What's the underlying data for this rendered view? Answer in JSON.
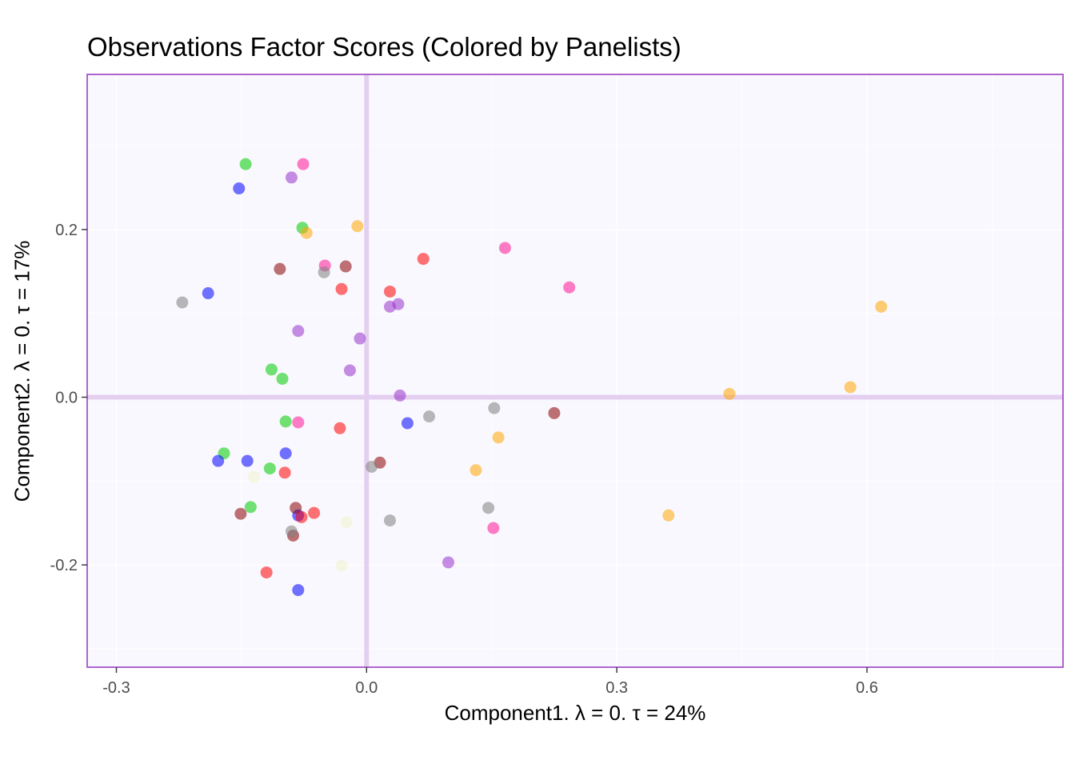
{
  "chart_data": {
    "type": "scatter",
    "title": "Observations Factor Scores (Colored by Panelists)",
    "xlabel": "Component1.   λ = 0.  τ = 24%",
    "ylabel": "Component2.   λ = 0.  τ = 17%",
    "xlim": [
      -0.335,
      0.835
    ],
    "ylim": [
      -0.322,
      0.385
    ],
    "x_ticks": [
      -0.3,
      0.0,
      0.3,
      0.6
    ],
    "x_tick_labels": [
      "-0.3",
      "0.0",
      "0.3",
      "0.6"
    ],
    "y_ticks": [
      -0.2,
      0.0,
      0.2
    ],
    "y_tick_labels": [
      "-0.2",
      "0.0",
      "0.2"
    ],
    "grid": true,
    "reference_lines": {
      "x": 0,
      "y": 0
    },
    "colors": {
      "background": "#f9f8fe",
      "frame": "#9b3fc3",
      "grid": "#ffffff",
      "reference_line": "#e5cff0"
    },
    "series": [
      {
        "color": "#00cc00",
        "values": [
          [
            -0.145,
            0.278
          ],
          [
            -0.077,
            0.202
          ],
          [
            -0.114,
            0.033
          ],
          [
            -0.101,
            0.022
          ],
          [
            -0.097,
            -0.029
          ],
          [
            -0.171,
            -0.067
          ],
          [
            -0.116,
            -0.085
          ],
          [
            -0.139,
            -0.131
          ]
        ]
      },
      {
        "color": "#ff1493",
        "values": [
          [
            -0.076,
            0.278
          ],
          [
            -0.05,
            0.157
          ],
          [
            0.166,
            0.178
          ],
          [
            0.243,
            0.131
          ],
          [
            -0.082,
            -0.03
          ],
          [
            0.152,
            -0.156
          ]
        ]
      },
      {
        "color": "#9932cc",
        "values": [
          [
            -0.09,
            0.262
          ],
          [
            -0.082,
            0.079
          ],
          [
            0.028,
            0.108
          ],
          [
            0.038,
            0.111
          ],
          [
            -0.008,
            0.07
          ],
          [
            -0.02,
            0.032
          ],
          [
            0.04,
            0.002
          ],
          [
            0.098,
            -0.197
          ]
        ]
      },
      {
        "color": "#0000ff",
        "values": [
          [
            -0.153,
            0.249
          ],
          [
            -0.19,
            0.124
          ],
          [
            0.049,
            -0.031
          ],
          [
            -0.178,
            -0.076
          ],
          [
            -0.143,
            -0.076
          ],
          [
            -0.097,
            -0.067
          ],
          [
            -0.082,
            -0.141
          ],
          [
            -0.082,
            -0.23
          ]
        ]
      },
      {
        "color": "#ffa500",
        "values": [
          [
            -0.011,
            0.204
          ],
          [
            -0.072,
            0.196
          ],
          [
            0.617,
            0.108
          ],
          [
            0.58,
            0.012
          ],
          [
            0.435,
            0.004
          ],
          [
            0.158,
            -0.048
          ],
          [
            0.131,
            -0.087
          ],
          [
            0.362,
            -0.141
          ]
        ]
      },
      {
        "color": "#8b0000",
        "values": [
          [
            -0.104,
            0.153
          ],
          [
            -0.025,
            0.156
          ],
          [
            0.225,
            -0.019
          ],
          [
            0.016,
            -0.078
          ],
          [
            -0.151,
            -0.139
          ],
          [
            -0.085,
            -0.132
          ],
          [
            -0.088,
            -0.165
          ]
        ]
      },
      {
        "color": "#808080",
        "values": [
          [
            -0.221,
            0.113
          ],
          [
            -0.051,
            0.149
          ],
          [
            0.075,
            -0.023
          ],
          [
            0.153,
            -0.013
          ],
          [
            0.006,
            -0.083
          ],
          [
            0.028,
            -0.147
          ],
          [
            0.146,
            -0.132
          ],
          [
            -0.09,
            -0.16
          ]
        ]
      },
      {
        "color": "#ff0000",
        "values": [
          [
            0.068,
            0.165
          ],
          [
            -0.03,
            0.129
          ],
          [
            0.028,
            0.126
          ],
          [
            -0.032,
            -0.037
          ],
          [
            -0.098,
            -0.09
          ],
          [
            -0.063,
            -0.138
          ],
          [
            -0.078,
            -0.143
          ],
          [
            -0.12,
            -0.209
          ]
        ]
      },
      {
        "color": "#f2f2cc",
        "values": [
          [
            -0.135,
            -0.095
          ],
          [
            -0.024,
            -0.149
          ],
          [
            -0.03,
            -0.201
          ]
        ]
      }
    ]
  }
}
